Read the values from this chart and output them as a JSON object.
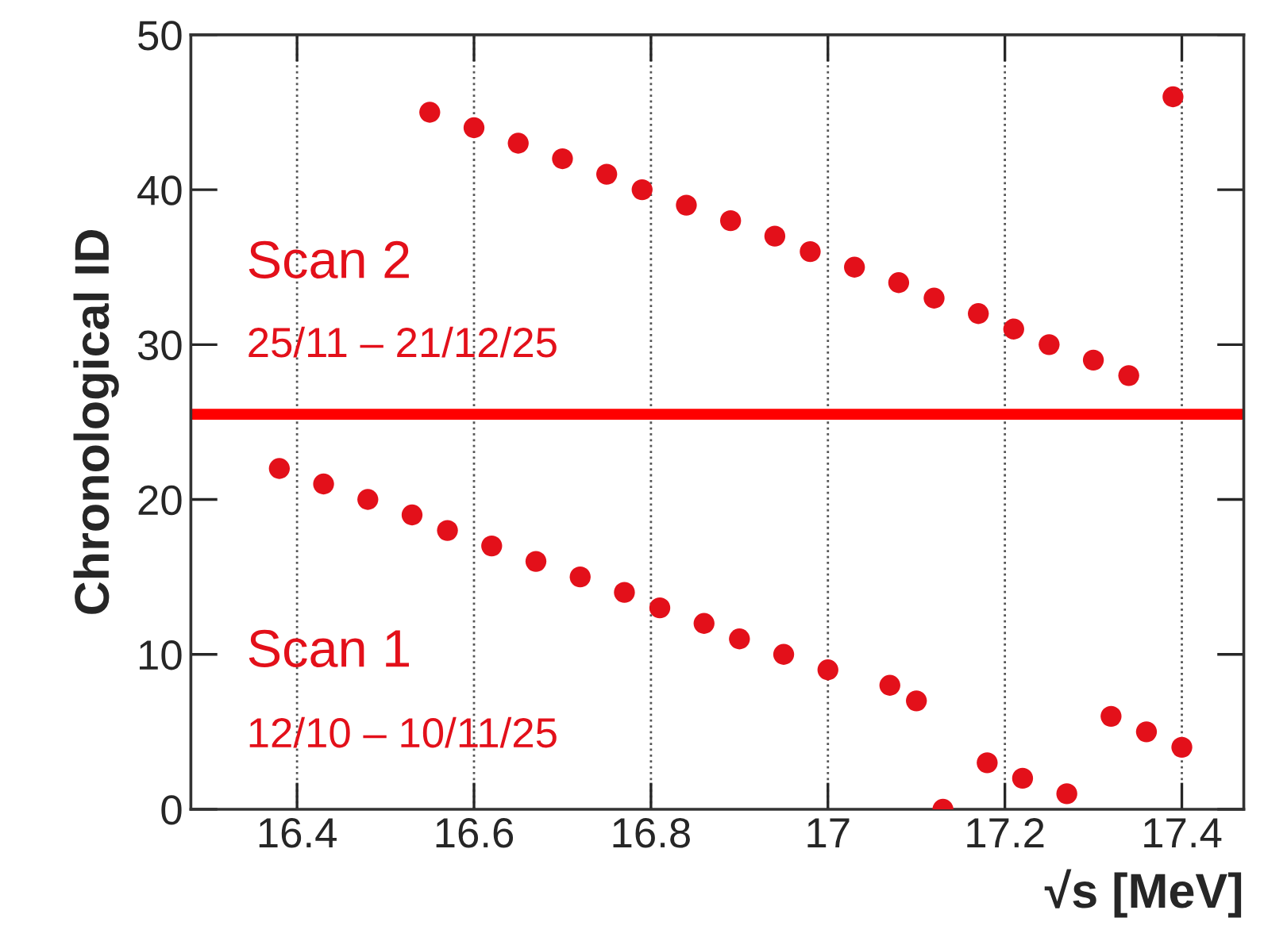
{
  "chart_data": {
    "type": "scatter",
    "xlabel": "√s [MeV]",
    "ylabel": "Chronological ID",
    "annotations": [
      "Scan 2",
      "25/11 – 21/12/25",
      "Scan 1",
      "12/10 – 10/11/25"
    ],
    "series": [
      {
        "color": "#e3101a",
        "x": [
          17.13,
          17.27,
          17.22,
          17.18,
          17.4,
          17.36,
          17.32,
          17.1,
          17.07,
          17.0,
          16.95,
          16.9,
          16.86,
          16.81,
          16.77,
          16.72,
          16.67,
          16.62,
          16.57,
          16.53,
          16.48,
          16.43,
          16.38,
          17.34,
          17.3,
          17.25,
          17.21,
          17.17,
          17.12,
          17.08,
          17.03,
          16.98,
          16.94,
          16.89,
          16.84,
          16.79,
          16.75,
          16.7,
          16.65,
          16.6,
          16.55,
          17.39
        ],
        "values": [
          0,
          1,
          2,
          3,
          4,
          5,
          6,
          7,
          8,
          9,
          10,
          11,
          12,
          13,
          14,
          15,
          16,
          17,
          18,
          19,
          20,
          21,
          22,
          28,
          29,
          30,
          31,
          32,
          33,
          34,
          35,
          36,
          37,
          38,
          39,
          40,
          41,
          42,
          43,
          44,
          45,
          46
        ]
      }
    ],
    "ref_lines": [
      {
        "axis": "y",
        "value": 25.5,
        "color": "#ff0000"
      }
    ],
    "xlim": [
      16.28,
      17.47
    ],
    "xticks": [
      16.4,
      16.6,
      16.8,
      17,
      17.2,
      17.4
    ],
    "ylim": [
      0,
      50
    ],
    "yticks": [
      0,
      10,
      20,
      30,
      40,
      50
    ],
    "grid": "x",
    "marker": "circle"
  }
}
